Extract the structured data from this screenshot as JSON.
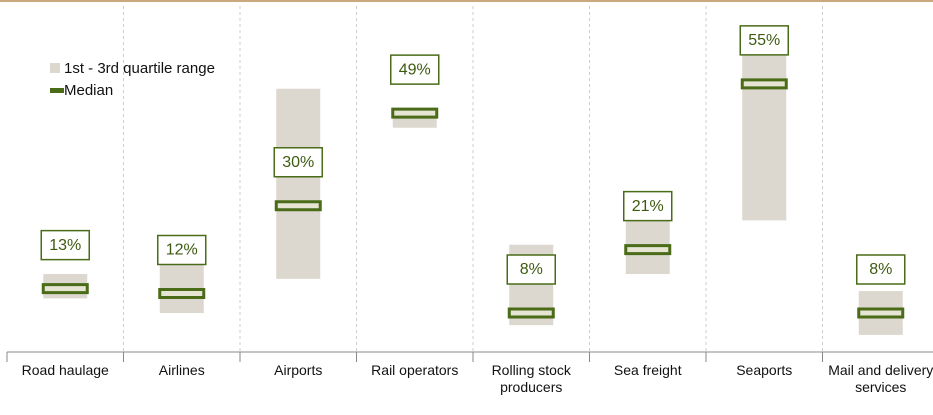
{
  "chart_data": {
    "type": "range",
    "categories": [
      "Road haulage",
      "Airlines",
      "Airports",
      "Rail operators",
      "Rolling stock producers",
      "Sea freight",
      "Seaports",
      "Mail and delivery services"
    ],
    "series": [
      {
        "name": "1st - 3rd quartile range",
        "color": "#ddd8cf",
        "low": [
          11,
          8,
          15,
          46,
          5.5,
          16,
          27,
          3.5
        ],
        "high": [
          16,
          18,
          54,
          50,
          22,
          27,
          61,
          12.5
        ]
      },
      {
        "name": "Median",
        "color": "#4a6b17",
        "values": [
          13,
          12,
          30,
          49,
          8,
          21,
          55,
          8
        ],
        "value_labels": [
          "13%",
          "12%",
          "30%",
          "49%",
          "8%",
          "21%",
          "55%",
          "8%"
        ]
      }
    ],
    "ylim": [
      0,
      72
    ]
  }
}
